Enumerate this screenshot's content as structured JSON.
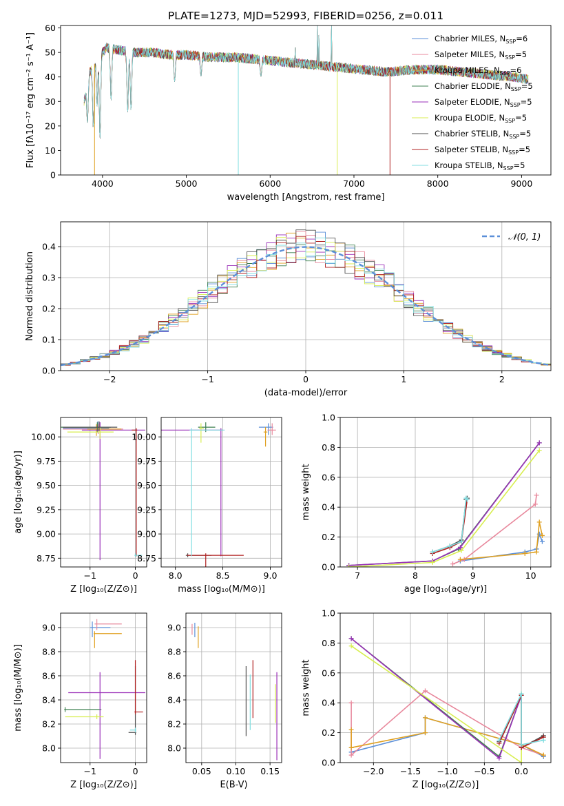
{
  "figure": {
    "title": "PLATE=1273, MJD=52993, FIBERID=0256, z=0.011"
  },
  "colors": {
    "Chabrier MILES": "#5b8fd8",
    "Salpeter MILES": "#e8889c",
    "Kroupa MILES": "#e0a020",
    "Chabrier ELODIE": "#3f8050",
    "Salpeter ELODIE": "#9a2fb8",
    "Kroupa ELODIE": "#d8ee50",
    "Chabrier STELIB": "#505050",
    "Salpeter STELIB": "#b02020",
    "Kroupa STELIB": "#80dde0",
    "normal_curve": "#5b8fd8",
    "grid": "#b0b0b0"
  },
  "chart_data": [
    {
      "id": "spectrum",
      "type": "line",
      "title": "PLATE=1273, MJD=52993, FIBERID=0256, z=0.011",
      "xlabel": "wavelength [Angstrom, rest frame]",
      "ylabel": "Flux [fλ10⁻¹⁷ erg cm⁻² s⁻¹ A⁻¹]",
      "xlim": [
        3500,
        9350
      ],
      "ylim": [
        0,
        61
      ],
      "xticks": [
        4000,
        5000,
        6000,
        7000,
        8000,
        9000
      ],
      "yticks": [
        0,
        10,
        20,
        30,
        40,
        50,
        60
      ],
      "grid": false,
      "legend_position": "top-right",
      "legend": [
        {
          "label": "Chabrier MILES, N",
          "sub": "SSP",
          "suffix": "=6",
          "color": "#5b8fd8"
        },
        {
          "label": "Salpeter MILES, N",
          "sub": "SSP",
          "suffix": "=5",
          "color": "#e8889c"
        },
        {
          "label": "Kroupa MILES, N",
          "sub": "SSP",
          "suffix": "=6",
          "color": "#e0a020"
        },
        {
          "label": "Chabrier ELODIE, N",
          "sub": "SSP",
          "suffix": "=5",
          "color": "#3f8050"
        },
        {
          "label": "Salpeter ELODIE, N",
          "sub": "SSP",
          "suffix": "=5",
          "color": "#9a2fb8"
        },
        {
          "label": "Kroupa ELODIE, N",
          "sub": "SSP",
          "suffix": "=5",
          "color": "#d8ee50"
        },
        {
          "label": "Chabrier STELIB, N",
          "sub": "SSP",
          "suffix": "=5",
          "color": "#505050"
        },
        {
          "label": "Salpeter STELIB, N",
          "sub": "SSP",
          "suffix": "=5",
          "color": "#b02020"
        },
        {
          "label": "Kroupa STELIB, N",
          "sub": "SSP",
          "suffix": "=5",
          "color": "#80dde0"
        }
      ],
      "continuum": {
        "x": [
          3780,
          3850,
          3950,
          4050,
          4200,
          4400,
          4600,
          4800,
          5000,
          5300,
          5600,
          5900,
          6200,
          6500,
          6800,
          7100,
          7400,
          7700,
          8000,
          8300,
          8600,
          8900,
          9080
        ],
        "y": [
          30,
          42,
          48,
          52,
          51,
          50,
          50,
          49,
          49,
          48,
          48,
          47,
          46,
          45,
          44,
          43,
          42,
          43,
          43,
          42,
          41,
          40,
          39
        ]
      },
      "dips": [
        {
          "x": 3820,
          "y": 21
        },
        {
          "x": 3890,
          "y": 19
        },
        {
          "x": 3935,
          "y": 28
        },
        {
          "x": 3970,
          "y": 14
        },
        {
          "x": 4102,
          "y": 30
        },
        {
          "x": 4300,
          "y": 25
        },
        {
          "x": 4340,
          "y": 26
        },
        {
          "x": 4861,
          "y": 38
        },
        {
          "x": 5175,
          "y": 40
        },
        {
          "x": 5890,
          "y": 40
        }
      ],
      "spikes": [
        {
          "x": 6300,
          "y": 52
        },
        {
          "x": 6563,
          "y": 61
        },
        {
          "x": 6583,
          "y": 57
        },
        {
          "x": 6731,
          "y": 61
        }
      ],
      "drops": [
        {
          "x": 3905,
          "color": "#e0a020"
        },
        {
          "x": 5620,
          "color": "#80dde0"
        },
        {
          "x": 6800,
          "color": "#d8ee50"
        },
        {
          "x": 7430,
          "color": "#b02020"
        }
      ]
    },
    {
      "id": "residuals",
      "type": "step-histogram",
      "xlabel": "(data-model)/error",
      "ylabel": "Normed distribution",
      "xlim": [
        -2.5,
        2.5
      ],
      "ylim": [
        0,
        0.48
      ],
      "xticks": [
        -2,
        -1,
        0,
        1,
        2
      ],
      "yticks": [
        0.0,
        0.1,
        0.2,
        0.3,
        0.4
      ],
      "grid": true,
      "legend_position": "top-right",
      "legend": [
        {
          "label": "𝒩(0, 1)",
          "color": "#5b8fd8",
          "dashed": true
        }
      ],
      "bin_edges_from": -2.5,
      "bin_width": 0.1,
      "bins": 50,
      "normal_curve": {
        "mean": 0,
        "sigma": 1
      }
    },
    {
      "id": "age-vs-Z",
      "type": "errorbar",
      "xlabel": "Z [log₁₀(Z/Z⊙)]",
      "ylabel": "age  [log₁₀(age/yr)]",
      "xlim": [
        -1.65,
        0.25
      ],
      "ylim": [
        8.66,
        10.2
      ],
      "xticks": [
        -1,
        0
      ],
      "yticks": [
        8.75,
        9.0,
        9.25,
        9.5,
        9.75,
        10.0
      ],
      "grid": true,
      "points": [
        {
          "x": -0.83,
          "y": 10.09,
          "xerr": [
            0.77,
            0.25
          ],
          "yerr": [
            0.05,
            0.07
          ],
          "color": "#5b8fd8"
        },
        {
          "x": -0.82,
          "y": 10.08,
          "xerr": [
            0.78,
            0.55
          ],
          "yerr": [
            0.05,
            0.05
          ],
          "color": "#e8889c"
        },
        {
          "x": -0.86,
          "y": 10.08,
          "xerr": [
            0.2,
            0.55
          ],
          "yerr": [
            0.07,
            0.05
          ],
          "color": "#e0a020"
        },
        {
          "x": -0.84,
          "y": 10.1,
          "xerr": [
            0.8,
            0.3
          ],
          "yerr": [
            0.05,
            0.05
          ],
          "color": "#3f8050"
        },
        {
          "x": -0.78,
          "y": 10.07,
          "xerr": [
            0.4,
            1.0
          ],
          "yerr": [
            1.34,
            0.08
          ],
          "color": "#9a2fb8"
        },
        {
          "x": -0.78,
          "y": 10.05,
          "xerr": [
            0.72,
            0.3
          ],
          "yerr": [
            0.07,
            0.05
          ],
          "color": "#d8ee50"
        },
        {
          "x": -0.8,
          "y": 10.1,
          "xerr": [
            0.8,
            0.4
          ],
          "yerr": [
            0.04,
            0.06
          ],
          "color": "#505050"
        },
        {
          "x": 0.02,
          "y": 10.07,
          "xerr": [
            0.1,
            0.02
          ],
          "yerr": [
            1.3,
            0.02
          ],
          "color": "#b02020"
        },
        {
          "x": 0.0,
          "y": 8.78,
          "xerr": [
            0.02,
            0.15
          ],
          "yerr": [
            0.02,
            0.02
          ],
          "color": "#80dde0"
        }
      ]
    },
    {
      "id": "age-vs-mass",
      "type": "errorbar",
      "xlabel": "mass [log₁₀(M/M⊙)]",
      "ylabel": "",
      "xlim": [
        7.85,
        9.12
      ],
      "ylim": [
        8.66,
        10.2
      ],
      "xticks": [
        8.0,
        8.5,
        9.0
      ],
      "yticks": [
        8.75,
        9.0,
        9.25,
        9.5,
        9.75,
        10.0
      ],
      "grid": true,
      "points": [
        {
          "x": 8.98,
          "y": 10.1,
          "xerr": [
            0.1,
            0.05
          ],
          "yerr": [
            0.08,
            0.04
          ],
          "color": "#5b8fd8"
        },
        {
          "x": 9.02,
          "y": 10.07,
          "xerr": [
            0.05,
            0.04
          ],
          "yerr": [
            0.05,
            0.07
          ],
          "color": "#e8889c"
        },
        {
          "x": 8.95,
          "y": 10.05,
          "xerr": [
            0.02,
            0.02
          ],
          "yerr": [
            0.15,
            0.05
          ],
          "color": "#e0a020"
        },
        {
          "x": 8.32,
          "y": 10.1,
          "xerr": [
            0.08,
            0.1
          ],
          "yerr": [
            0.05,
            0.05
          ],
          "color": "#3f8050"
        },
        {
          "x": 8.48,
          "y": 10.07,
          "xerr": [
            0.63,
            0.02
          ],
          "yerr": [
            1.3,
            0.02
          ],
          "color": "#9a2fb8"
        },
        {
          "x": 8.27,
          "y": 10.09,
          "xerr": [
            0.02,
            0.03
          ],
          "yerr": [
            0.15,
            0.05
          ],
          "color": "#d8ee50"
        },
        {
          "x": 8.13,
          "y": 8.78,
          "xerr": [
            0.02,
            0.25
          ],
          "yerr": [
            0.02,
            0.02
          ],
          "color": "#505050"
        },
        {
          "x": 8.32,
          "y": 8.78,
          "xerr": [
            0.2,
            0.4
          ],
          "yerr": [
            1.3,
            0.02
          ],
          "color": "#b02020"
        },
        {
          "x": 8.17,
          "y": 10.07,
          "xerr": [
            0.02,
            0.35
          ],
          "yerr": [
            1.3,
            0.02
          ],
          "color": "#80dde0"
        }
      ]
    },
    {
      "id": "mass-weight-vs-age",
      "type": "line",
      "xlabel": "age  [log₁₀(age/yr)]",
      "ylabel": "mass weight",
      "xlim": [
        6.7,
        10.35
      ],
      "ylim": [
        0,
        1.0
      ],
      "xticks": [
        7,
        8,
        9,
        10
      ],
      "yticks": [
        0.0,
        0.2,
        0.4,
        0.6,
        0.8,
        1.0
      ],
      "grid": true,
      "series": [
        {
          "color": "#5b8fd8",
          "x": [
            8.78,
            9.9,
            10.1,
            10.15,
            10.2
          ],
          "y": [
            0.04,
            0.1,
            0.12,
            0.22,
            0.17
          ]
        },
        {
          "color": "#e8889c",
          "x": [
            8.65,
            8.85,
            10.08,
            10.1
          ],
          "y": [
            0.02,
            0.05,
            0.42,
            0.48
          ]
        },
        {
          "color": "#e0a020",
          "x": [
            8.78,
            9.9,
            10.1,
            10.15,
            10.2
          ],
          "y": [
            0.05,
            0.09,
            0.1,
            0.3,
            0.21
          ]
        },
        {
          "color": "#3f8050",
          "x": [
            6.85,
            8.3,
            8.75,
            10.15
          ],
          "y": [
            0.01,
            0.04,
            0.12,
            0.83
          ]
        },
        {
          "color": "#9a2fb8",
          "x": [
            6.85,
            8.3,
            8.78,
            10.15
          ],
          "y": [
            0.01,
            0.04,
            0.13,
            0.83
          ]
        },
        {
          "color": "#d8ee50",
          "x": [
            6.85,
            8.3,
            8.8,
            10.15
          ],
          "y": [
            0.0,
            0.03,
            0.11,
            0.78
          ]
        },
        {
          "color": "#505050",
          "x": [
            8.3,
            8.6,
            8.8,
            8.88,
            8.9
          ],
          "y": [
            0.1,
            0.14,
            0.18,
            0.45,
            0.46
          ]
        },
        {
          "color": "#b02020",
          "x": [
            8.3,
            8.6,
            8.8,
            8.9
          ],
          "y": [
            0.09,
            0.13,
            0.17,
            0.45
          ]
        },
        {
          "color": "#80dde0",
          "x": [
            8.3,
            8.6,
            8.8,
            8.88,
            8.9
          ],
          "y": [
            0.1,
            0.14,
            0.17,
            0.46,
            0.45
          ]
        }
      ]
    },
    {
      "id": "mass-vs-Z",
      "type": "errorbar",
      "xlabel": "Z [log₁₀(Z/Z⊙)]",
      "ylabel": "mass [log₁₀(M/M⊙)]",
      "xlim": [
        -1.65,
        0.25
      ],
      "ylim": [
        7.88,
        9.12
      ],
      "xticks": [
        -1,
        0
      ],
      "yticks": [
        8.0,
        8.2,
        8.4,
        8.6,
        8.8,
        9.0
      ],
      "grid": true,
      "points": [
        {
          "x": -0.95,
          "y": 9.0,
          "xerr": [
            0.05,
            0.4
          ],
          "yerr": [
            0.08,
            0.05
          ],
          "color": "#5b8fd8"
        },
        {
          "x": -0.85,
          "y": 9.03,
          "xerr": [
            0.05,
            0.55
          ],
          "yerr": [
            0.05,
            0.04
          ],
          "color": "#e8889c"
        },
        {
          "x": -0.9,
          "y": 8.95,
          "xerr": [
            0.02,
            0.6
          ],
          "yerr": [
            0.12,
            0.02
          ],
          "color": "#e0a020"
        },
        {
          "x": -1.55,
          "y": 8.32,
          "xerr": [
            0.02,
            0.8
          ],
          "yerr": [
            0.02,
            0.02
          ],
          "color": "#3f8050"
        },
        {
          "x": -0.78,
          "y": 8.46,
          "xerr": [
            0.7,
            1.0
          ],
          "yerr": [
            0.55,
            0.17
          ],
          "color": "#9a2fb8"
        },
        {
          "x": -0.85,
          "y": 8.26,
          "xerr": [
            0.7,
            0.15
          ],
          "yerr": [
            0.02,
            0.02
          ],
          "color": "#d8ee50"
        },
        {
          "x": 0.0,
          "y": 8.13,
          "xerr": [
            0.15,
            0.02
          ],
          "yerr": [
            0.02,
            0.55
          ],
          "color": "#505050"
        },
        {
          "x": 0.0,
          "y": 8.3,
          "xerr": [
            0.02,
            0.17
          ],
          "yerr": [
            0.02,
            0.43
          ],
          "color": "#b02020"
        },
        {
          "x": 0.0,
          "y": 8.15,
          "xerr": [
            0.12,
            0.02
          ],
          "yerr": [
            0.02,
            0.02
          ],
          "color": "#80dde0"
        }
      ]
    },
    {
      "id": "mass-vs-EBV",
      "type": "errorbar",
      "xlabel": "E(B-V)",
      "ylabel": "",
      "xlim": [
        0.027,
        0.167
      ],
      "ylim": [
        7.88,
        9.12
      ],
      "xticks": [
        0.05,
        0.1,
        0.15
      ],
      "yticks": [
        8.0,
        8.2,
        8.4,
        8.6,
        8.8,
        9.0
      ],
      "grid": true,
      "points": [
        {
          "x": 0.036,
          "y": 9.0,
          "yerr": [
            0.06,
            0.03
          ],
          "color": "#e8889c"
        },
        {
          "x": 0.04,
          "y": 9.0,
          "yerr": [
            0.08,
            0.04
          ],
          "color": "#5b8fd8"
        },
        {
          "x": 0.045,
          "y": 8.95,
          "yerr": [
            0.12,
            0.06
          ],
          "color": "#e0a020"
        },
        {
          "x": 0.115,
          "y": 8.4,
          "yerr": [
            0.3,
            0.28
          ],
          "color": "#505050"
        },
        {
          "x": 0.121,
          "y": 8.38,
          "yerr": [
            0.23,
            0.23
          ],
          "color": "#80dde0"
        },
        {
          "x": 0.125,
          "y": 8.5,
          "yerr": [
            0.25,
            0.23
          ],
          "color": "#b02020"
        },
        {
          "x": 0.158,
          "y": 8.38,
          "yerr": [
            0.17,
            0.15
          ],
          "color": "#d8ee50"
        },
        {
          "x": 0.16,
          "y": 8.3,
          "yerr": [
            0.4,
            0.33
          ],
          "color": "#9a2fb8"
        }
      ]
    },
    {
      "id": "mass-weight-vs-Z",
      "type": "line",
      "xlabel": "Z [log₁₀(Z/Z⊙)]",
      "ylabel": "mass weight",
      "xlim": [
        -2.45,
        0.4
      ],
      "ylim": [
        0,
        1.0
      ],
      "xticks": [
        -2.0,
        -1.5,
        -1.0,
        -0.5,
        0.0
      ],
      "yticks": [
        0.0,
        0.2,
        0.4,
        0.6,
        0.8,
        1.0
      ],
      "grid": true,
      "series": [
        {
          "color": "#5b8fd8",
          "x": [
            -2.3,
            -1.3,
            -1.3,
            0.0,
            0.3
          ],
          "y": [
            0.07,
            0.2,
            0.3,
            0.12,
            0.04
          ]
        },
        {
          "color": "#e8889c",
          "x": [
            -2.3,
            -2.3,
            -1.3,
            0.0,
            0.3
          ],
          "y": [
            0.4,
            0.05,
            0.48,
            0.1,
            0.05
          ]
        },
        {
          "color": "#e0a020",
          "x": [
            -2.3,
            -2.3,
            -1.3,
            -1.3,
            0.0,
            0.3
          ],
          "y": [
            0.22,
            0.1,
            0.2,
            0.3,
            0.12,
            0.05
          ]
        },
        {
          "color": "#3f8050",
          "x": [
            -2.3,
            -0.3,
            0.0
          ],
          "y": [
            0.83,
            0.04,
            0.45
          ]
        },
        {
          "color": "#9a2fb8",
          "x": [
            -2.3,
            -0.3,
            0.0
          ],
          "y": [
            0.83,
            0.03,
            0.45
          ]
        },
        {
          "color": "#d8ee50",
          "x": [
            -2.3,
            0.0,
            0.0
          ],
          "y": [
            0.78,
            0.0,
            0.46
          ]
        },
        {
          "color": "#505050",
          "x": [
            -0.3,
            0.0,
            0.0,
            0.3
          ],
          "y": [
            0.14,
            0.45,
            0.1,
            0.18
          ]
        },
        {
          "color": "#b02020",
          "x": [
            -0.3,
            0.0,
            0.0,
            0.3
          ],
          "y": [
            0.13,
            0.45,
            0.1,
            0.17
          ]
        },
        {
          "color": "#80dde0",
          "x": [
            -0.3,
            0.0,
            0.0,
            0.3
          ],
          "y": [
            0.15,
            0.46,
            0.12,
            0.15
          ]
        }
      ]
    }
  ]
}
